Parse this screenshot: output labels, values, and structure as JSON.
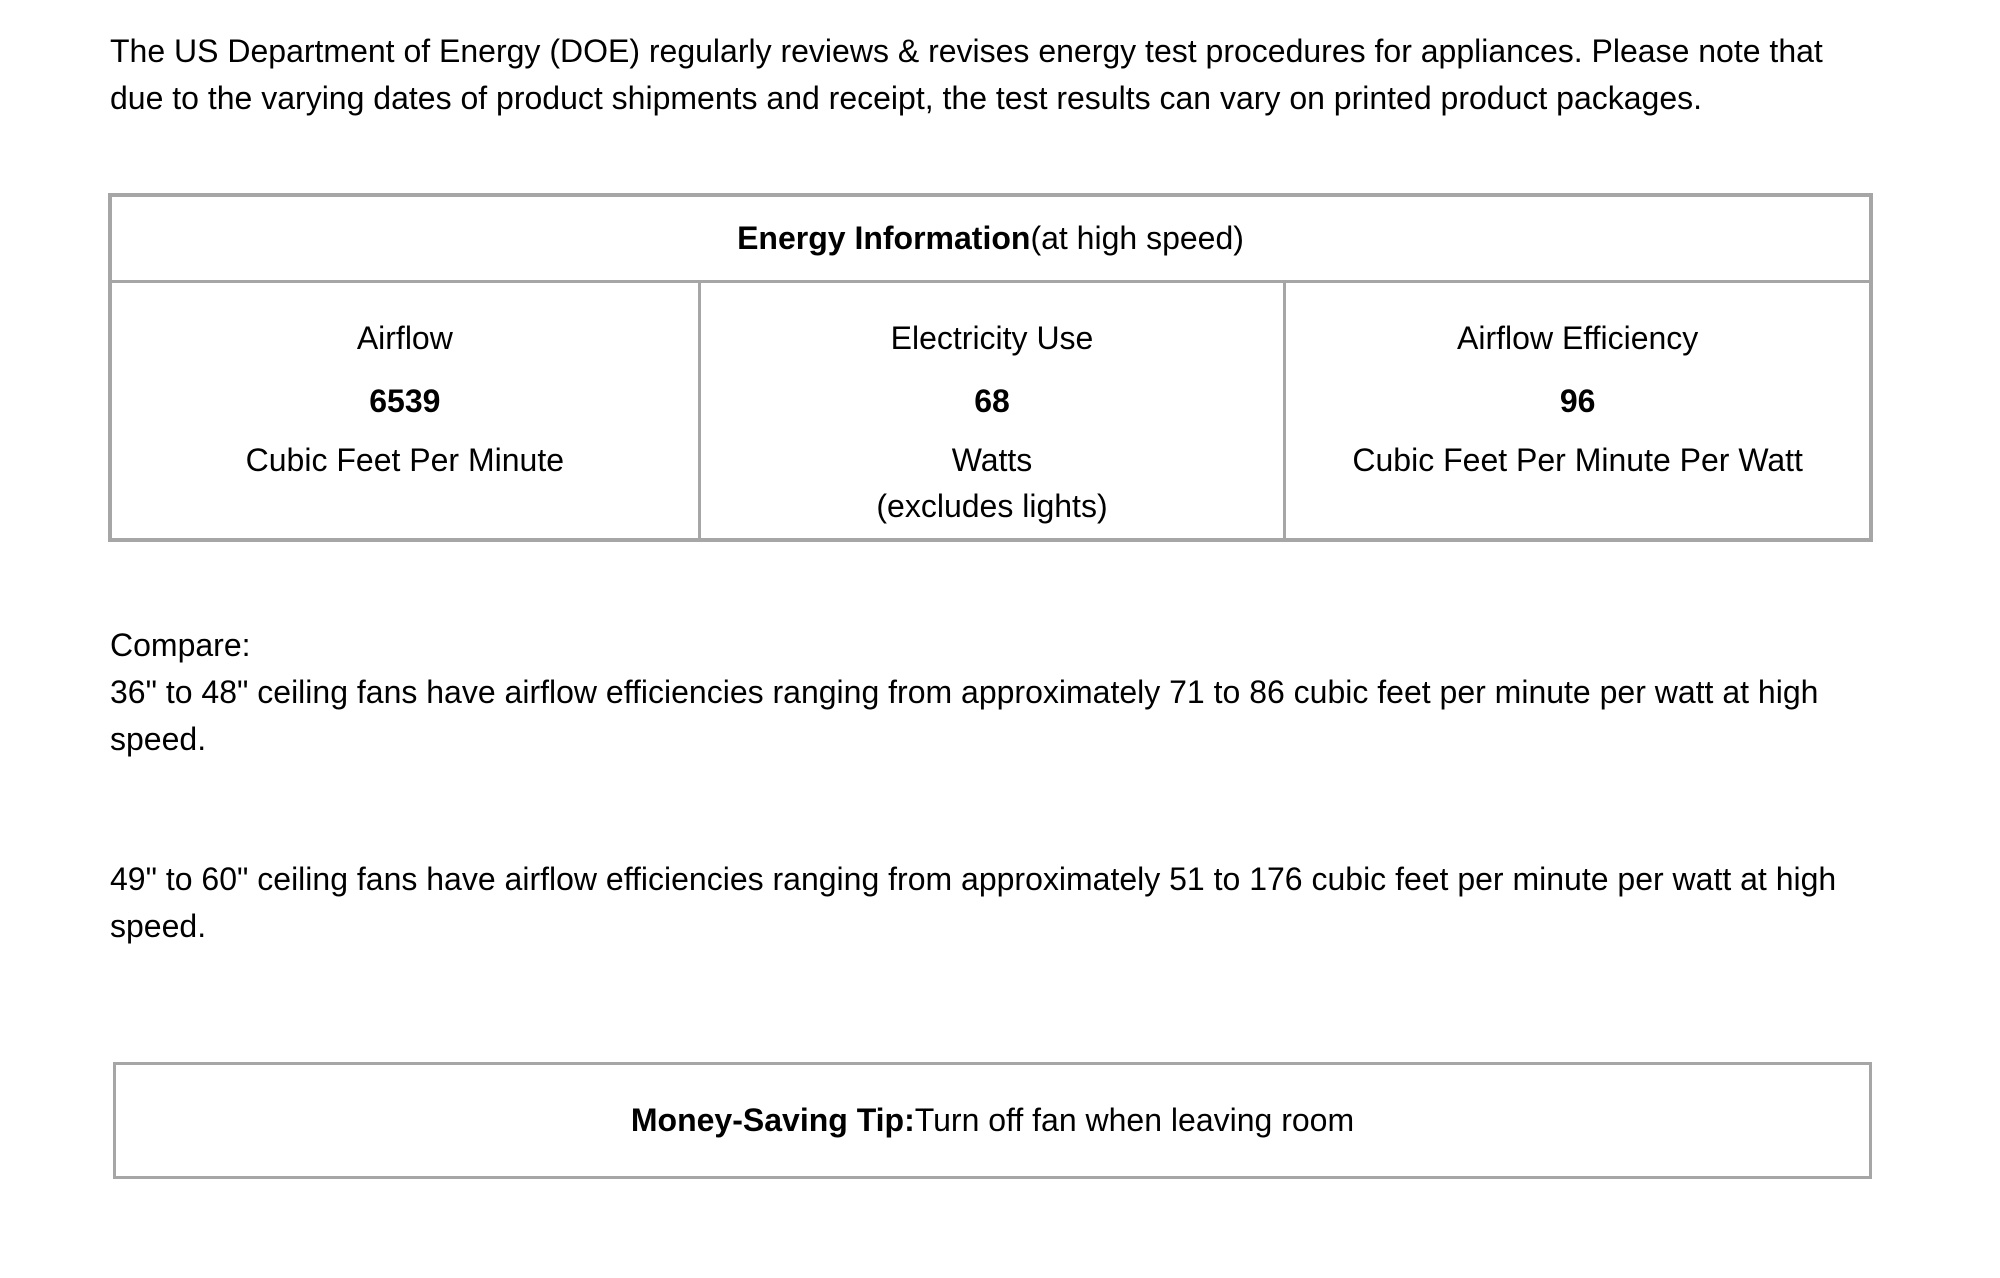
{
  "intro": {
    "text": "The US Department of Energy (DOE) regularly reviews & revises energy test procedures for appliances. Please note that due to the varying dates of product shipments and receipt, the test results can vary on printed product packages."
  },
  "energy_table": {
    "title_bold": "Energy Information",
    "title_suffix": " (at high speed)",
    "columns": [
      {
        "label": "Airflow",
        "value": "6539",
        "unit": "Cubic Feet Per Minute"
      },
      {
        "label": "Electricity Use",
        "value": "68",
        "unit": "Watts\n(excludes lights)"
      },
      {
        "label": "Airflow Efficiency",
        "value": "96",
        "unit": "Cubic Feet Per Minute Per Watt"
      }
    ]
  },
  "compare": {
    "heading": "Compare:",
    "paragraph1": "36\" to 48\" ceiling fans have airflow efficiencies ranging from approximately 71 to 86 cubic feet per minute per watt at high speed.",
    "paragraph2": "49\" to 60\" ceiling fans have airflow efficiencies ranging from approximately 51 to 176 cubic feet per minute per watt at high speed."
  },
  "tip": {
    "label": "Money-Saving Tip:",
    "text": " Turn off fan when leaving room"
  },
  "colors": {
    "border_gray": "#a6a6a6",
    "text": "#000000",
    "background": "#ffffff"
  }
}
